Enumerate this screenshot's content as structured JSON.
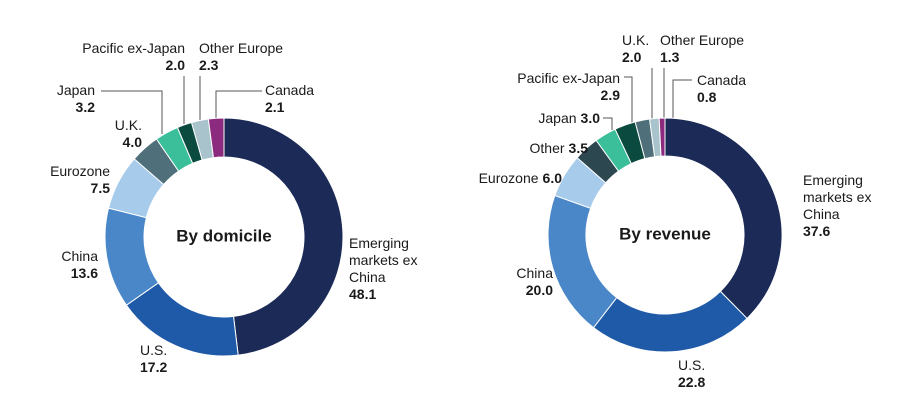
{
  "chart_data": [
    {
      "type": "pie",
      "title": "By domicile",
      "categories": [
        "Emerging markets ex China",
        "U.S.",
        "China",
        "Eurozone",
        "U.K.",
        "Japan",
        "Pacific ex-Japan",
        "Other Europe",
        "Canada"
      ],
      "values": [
        48.1,
        17.2,
        13.6,
        7.5,
        4.0,
        3.2,
        2.0,
        2.3,
        2.1
      ],
      "value_labels": [
        "48.1",
        "17.2",
        "13.6",
        "7.5",
        "4.0",
        "3.2",
        "2.0",
        "2.3",
        "2.1"
      ],
      "colors": [
        "#1b2a56",
        "#1f5aa8",
        "#4a87c8",
        "#a7cbeb",
        "#4f6f7a",
        "#3bbf9a",
        "#0b4a3e",
        "#a9c3cc",
        "#8b2a7e"
      ]
    },
    {
      "type": "pie",
      "title": "By revenue",
      "categories": [
        "Emerging markets ex China",
        "U.S.",
        "China",
        "Eurozone",
        "Other",
        "Japan",
        "Pacific ex-Japan",
        "U.K.",
        "Other Europe",
        "Canada"
      ],
      "values": [
        37.6,
        22.8,
        20.0,
        6.0,
        3.5,
        3.0,
        2.9,
        2.0,
        1.3,
        0.8
      ],
      "value_labels": [
        "37.6",
        "22.8",
        "20.0",
        "6.0",
        "3.5",
        "3.0",
        "2.9",
        "2.0",
        "1.3",
        "0.8"
      ],
      "colors": [
        "#1b2a56",
        "#1f5aa8",
        "#4a87c8",
        "#a7cbeb",
        "#2d4750",
        "#3bbf9a",
        "#0b4a3e",
        "#4f6f7a",
        "#a9c3cc",
        "#8b2a7e"
      ]
    }
  ]
}
